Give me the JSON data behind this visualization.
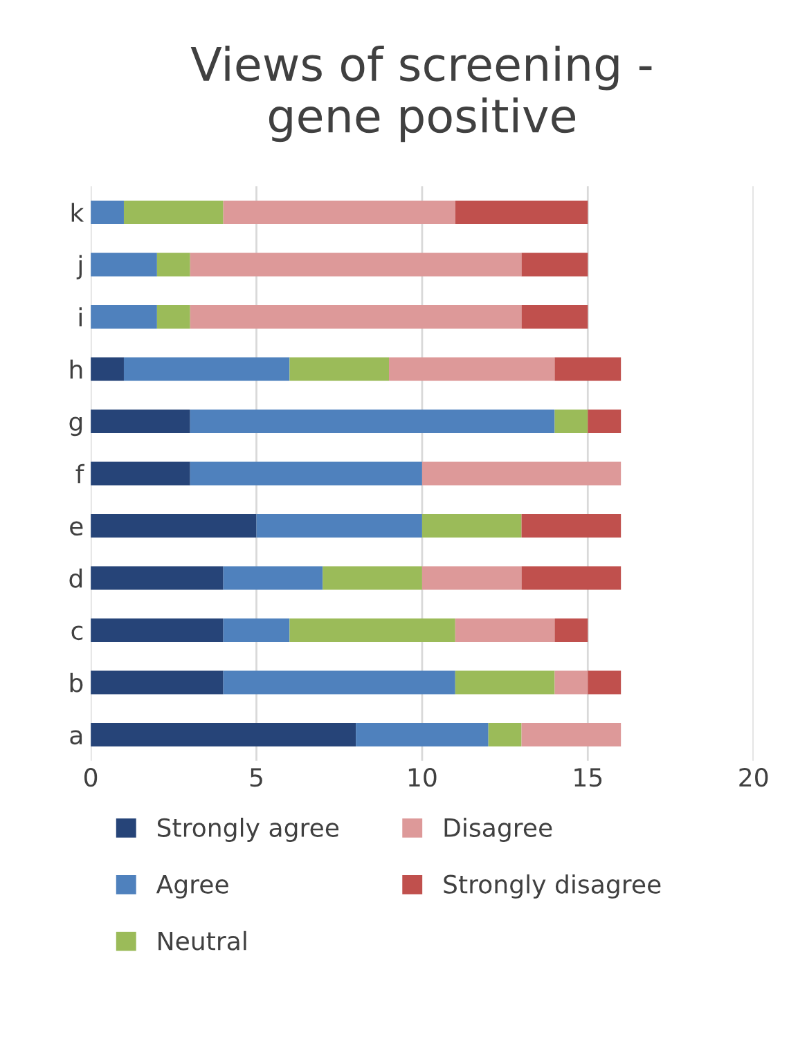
{
  "chart_data": {
    "type": "bar",
    "orientation": "horizontal",
    "stacked": true,
    "title": "Views of screening -\ngene positive",
    "categories": [
      "k",
      "j",
      "i",
      "h",
      "g",
      "f",
      "e",
      "d",
      "c",
      "b",
      "a"
    ],
    "series": [
      {
        "name": "Strongly agree",
        "color": "#264478",
        "values": [
          0,
          0,
          0,
          1,
          3,
          3,
          5,
          4,
          4,
          4,
          8
        ]
      },
      {
        "name": "Agree",
        "color": "#4f81bd",
        "values": [
          1,
          2,
          2,
          5,
          11,
          7,
          5,
          3,
          2,
          7,
          4
        ]
      },
      {
        "name": "Neutral",
        "color": "#9bbb59",
        "values": [
          3,
          1,
          1,
          3,
          1,
          0,
          3,
          3,
          5,
          3,
          1
        ]
      },
      {
        "name": "Disagree",
        "color": "#dd9999",
        "values": [
          7,
          10,
          10,
          5,
          0,
          6,
          0,
          3,
          3,
          1,
          3
        ]
      },
      {
        "name": "Strongly disagree",
        "color": "#c0504d",
        "values": [
          4,
          2,
          2,
          2,
          1,
          0,
          3,
          3,
          1,
          1,
          0
        ]
      }
    ],
    "xlim": [
      0,
      20
    ],
    "xticks": [
      0,
      5,
      10,
      15,
      20
    ],
    "grid": "x",
    "legend": "bottom"
  }
}
